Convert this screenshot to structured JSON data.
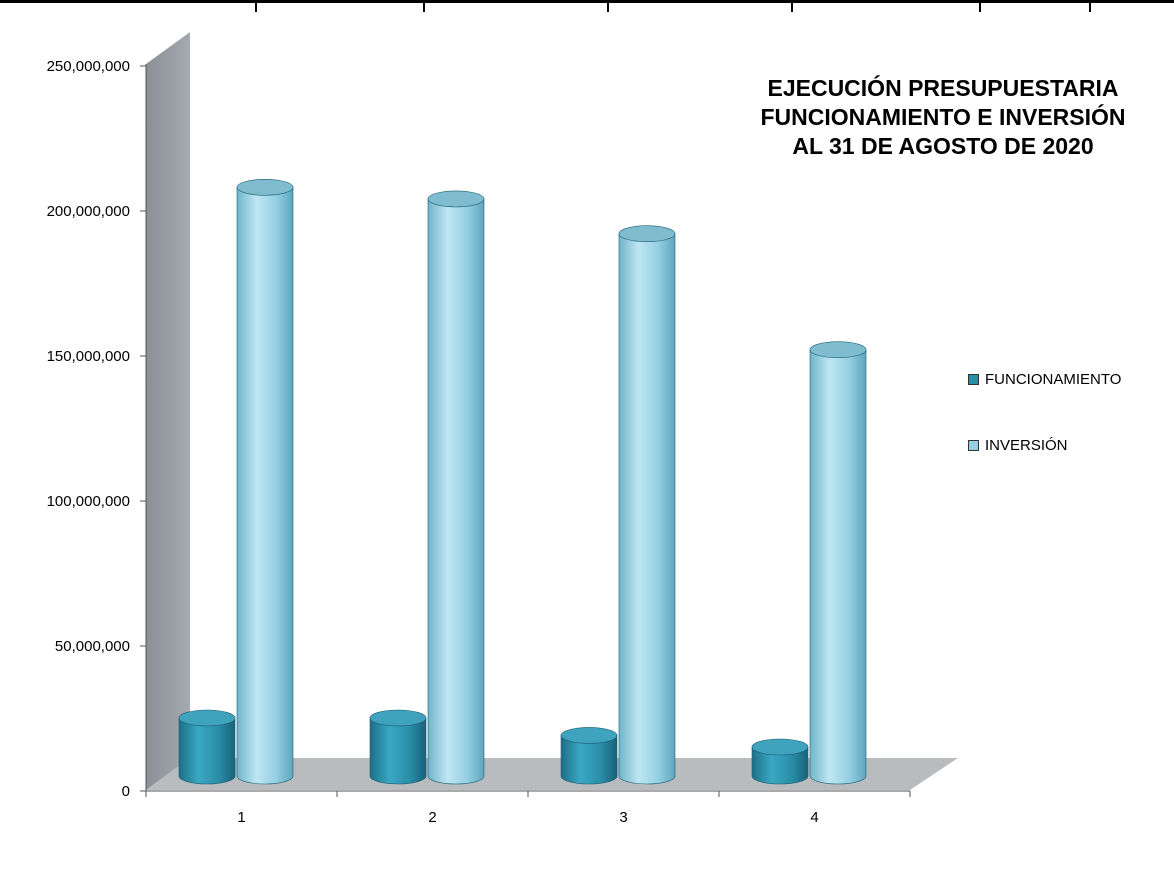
{
  "chart_data": {
    "type": "bar",
    "title_lines": [
      "EJECUCIÓN PRESUPUESTARIA",
      "FUNCIONAMIENTO E INVERSIÓN",
      "AL 31 DE AGOSTO DE 2020"
    ],
    "categories": [
      "1",
      "2",
      "3",
      "4"
    ],
    "series": [
      {
        "name": "FUNCIONAMIENTO",
        "color": "#2a8ea8",
        "values": [
          20000000,
          20000000,
          14000000,
          10000000
        ]
      },
      {
        "name": "INVERSIÓN",
        "color": "#94cfe3",
        "values": [
          203000000,
          199000000,
          187000000,
          147000000
        ]
      }
    ],
    "ylim": [
      0,
      250000000
    ],
    "yticks": [
      0,
      50000000,
      100000000,
      150000000,
      200000000,
      250000000
    ],
    "ytick_labels": [
      "0",
      "50,000,000",
      "100,000,000",
      "150,000,000",
      "200,000,000",
      "250,000,000"
    ],
    "legend_position": "right",
    "grid": false,
    "style": "3d-cylinder"
  }
}
